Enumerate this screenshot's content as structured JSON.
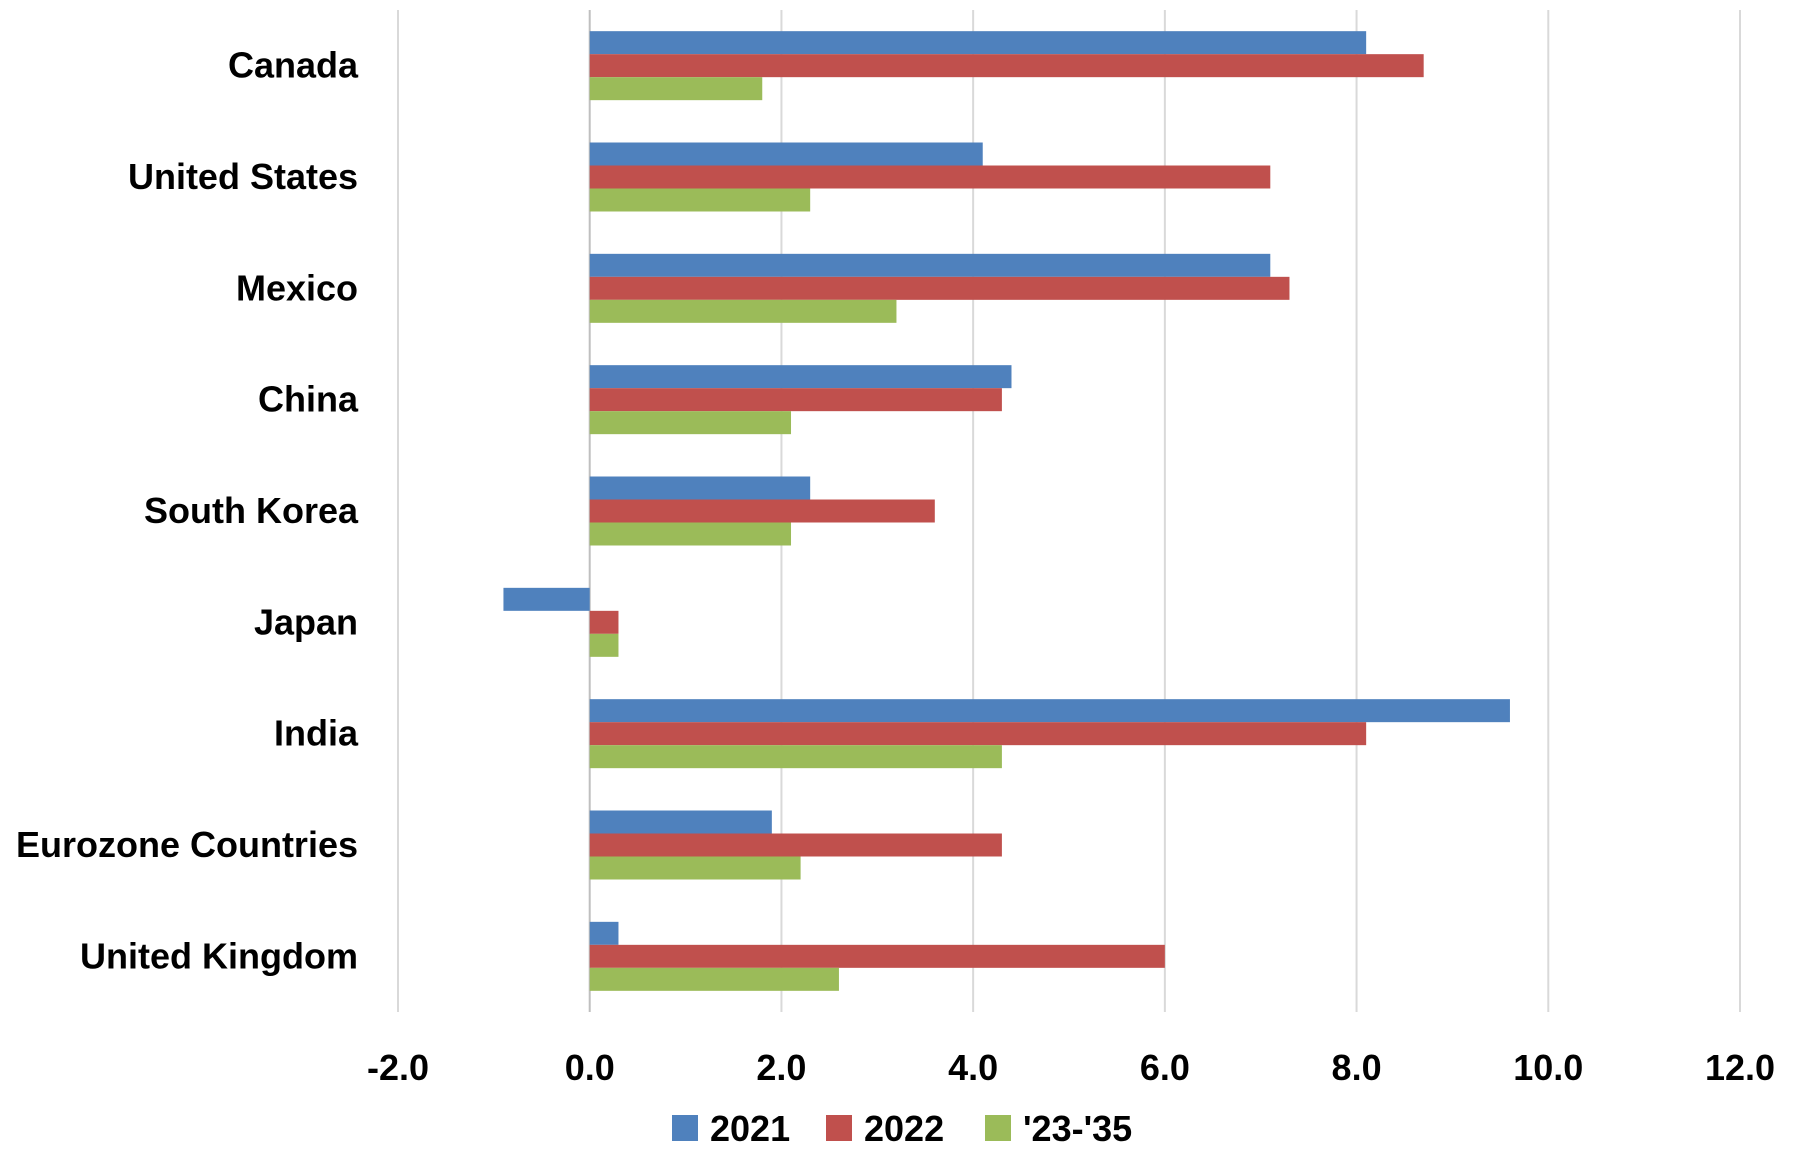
{
  "chart_data": {
    "type": "bar",
    "orientation": "horizontal",
    "categories": [
      "Canada",
      "United States",
      "Mexico",
      "China",
      "South Korea",
      "Japan",
      "India",
      "Eurozone Countries",
      "United Kingdom"
    ],
    "series": [
      {
        "name": "2021",
        "color": "#4F81BD",
        "values": [
          8.1,
          4.1,
          7.1,
          4.4,
          2.3,
          -0.9,
          9.6,
          1.9,
          0.3
        ]
      },
      {
        "name": "2022",
        "color": "#C0504D",
        "values": [
          8.7,
          7.1,
          7.3,
          4.3,
          3.6,
          0.3,
          8.1,
          4.3,
          6.0
        ]
      },
      {
        "name": "'23-'35",
        "color": "#9BBB59",
        "values": [
          1.8,
          2.3,
          3.2,
          2.1,
          2.1,
          0.3,
          4.3,
          2.2,
          2.6
        ]
      }
    ],
    "xlim": [
      -2.0,
      12.0
    ],
    "xticks": [
      "-2.0",
      "0.0",
      "2.0",
      "4.0",
      "6.0",
      "8.0",
      "10.0",
      "12.0"
    ],
    "grid": "vertical",
    "legend": "bottom"
  }
}
